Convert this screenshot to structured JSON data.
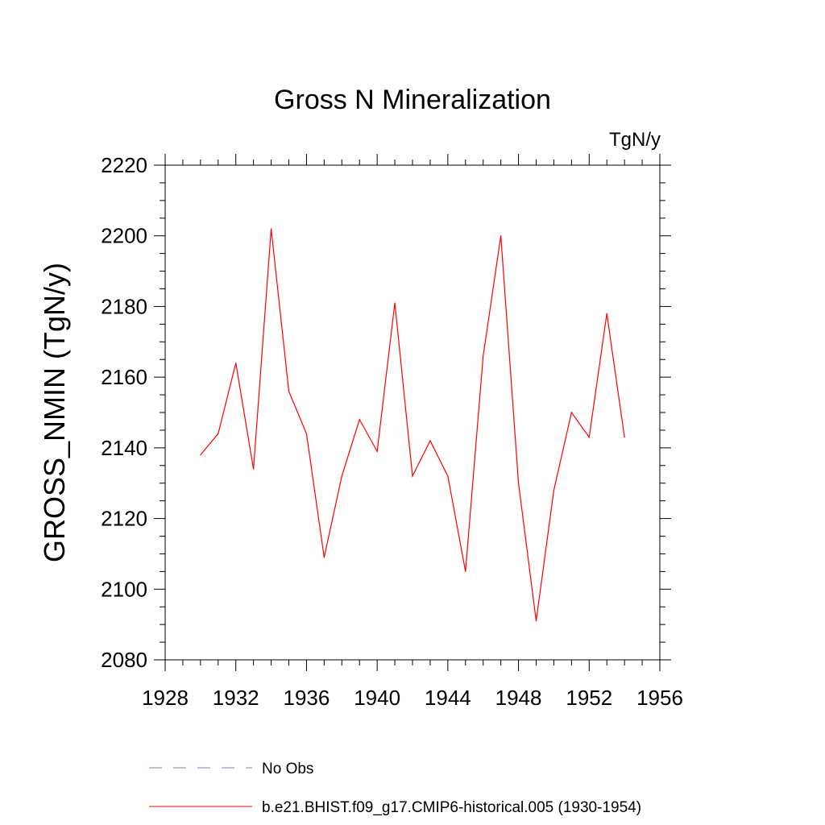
{
  "chart_data": {
    "type": "line",
    "title": "Gross N Mineralization",
    "units_label": "TgN/y",
    "xlabel": "",
    "ylabel": "GROSS_NMIN  (TgN/y)",
    "xlim": [
      1928,
      1956
    ],
    "ylim": [
      2080,
      2220
    ],
    "x_ticks": [
      1928,
      1932,
      1936,
      1940,
      1944,
      1948,
      1952,
      1956
    ],
    "y_ticks": [
      2080,
      2100,
      2120,
      2140,
      2160,
      2180,
      2200,
      2220
    ],
    "series": [
      {
        "name": "b.e21.BHIST.f09_g17.CMIP6-historical.005 (1930-1954)",
        "color": "#ff0000",
        "style": "solid",
        "x": [
          1930,
          1931,
          1932,
          1933,
          1934,
          1935,
          1936,
          1937,
          1938,
          1939,
          1940,
          1941,
          1942,
          1943,
          1944,
          1945,
          1946,
          1947,
          1948,
          1949,
          1950,
          1951,
          1952,
          1953,
          1954
        ],
        "values": [
          2138,
          2144,
          2164,
          2134,
          2202,
          2156,
          2144,
          2109,
          2132,
          2148,
          2139,
          2181,
          2132,
          2142,
          2132,
          2105,
          2166,
          2200,
          2130,
          2091,
          2128,
          2150,
          2143,
          2178,
          2143
        ]
      }
    ],
    "legend": [
      {
        "label": "No Obs",
        "color": "#7b78c8",
        "style": "dashed"
      },
      {
        "label": "b.e21.BHIST.f09_g17.CMIP6-historical.005 (1930-1954)",
        "color": "#ff0000",
        "style": "solid"
      }
    ],
    "legend_position": "bottom"
  }
}
